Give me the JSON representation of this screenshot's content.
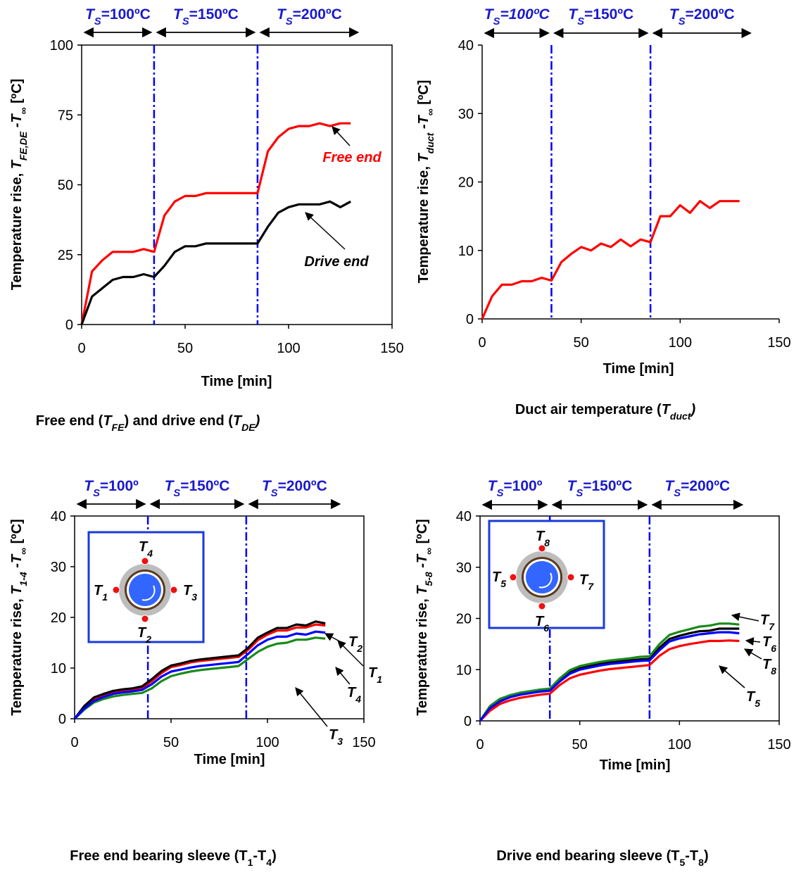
{
  "chart_data": [
    {
      "type": "line",
      "x": [
        0,
        5,
        10,
        15,
        20,
        25,
        30,
        35,
        40,
        45,
        50,
        55,
        60,
        65,
        70,
        75,
        80,
        85,
        90,
        95,
        100,
        105,
        110,
        115,
        120,
        125,
        130
      ],
      "xlim": [
        0,
        150
      ],
      "xticks": [
        0,
        50,
        100,
        150
      ],
      "ylim": [
        0,
        100
      ],
      "yticks": [
        0,
        25,
        50,
        75,
        100
      ],
      "frame": true,
      "phase_lines": [
        35,
        85
      ],
      "phases": [
        [
          {
            "text": "T",
            "italic": true
          },
          {
            "text": "S",
            "italic": true,
            "sub": true
          },
          {
            "text": "=100ºC"
          }
        ],
        [
          {
            "text": "T",
            "italic": true
          },
          {
            "text": "S",
            "italic": true,
            "sub": true
          },
          {
            "text": "=150ºC"
          }
        ],
        [
          {
            "text": "T",
            "italic": true
          },
          {
            "text": "S",
            "italic": true,
            "sub": true
          },
          {
            "text": "=200ºC"
          }
        ]
      ],
      "ylabel": [
        {
          "text": "Temperature rise, "
        },
        {
          "text": "T",
          "italic": true
        },
        {
          "text": "FE,DE",
          "italic": true,
          "sub": true
        },
        {
          "text": " -T",
          "italic": true
        },
        {
          "text": "∞",
          "italic": true,
          "sub": true
        },
        {
          "text": " [ºC]"
        }
      ],
      "xlabel": "Time [min]",
      "caption": [
        {
          "text": "Free end ("
        },
        {
          "text": "T",
          "italic": true
        },
        {
          "text": "FE",
          "italic": true,
          "sub": true
        },
        {
          "text": ") and drive end ("
        },
        {
          "text": "T",
          "italic": true
        },
        {
          "text": "DE",
          "italic": true,
          "sub": true
        },
        {
          "text": ")",
          "italic": true
        }
      ],
      "series": [
        {
          "name": "Free end",
          "color": "#ff0000",
          "values": [
            0,
            19,
            23,
            26,
            26,
            26,
            27,
            26,
            39,
            44,
            46,
            46,
            47,
            47,
            47,
            47,
            47,
            47,
            62,
            67,
            70,
            71,
            71,
            72,
            71,
            72,
            72
          ]
        },
        {
          "name": "Drive end",
          "color": "#000000",
          "values": [
            0,
            10,
            13,
            16,
            17,
            17,
            18,
            17,
            21,
            26,
            28,
            28,
            29,
            29,
            29,
            29,
            29,
            29,
            35,
            40,
            42,
            43,
            43,
            43,
            44,
            42,
            44
          ]
        }
      ]
    },
    {
      "type": "line",
      "x": [
        0,
        5,
        10,
        15,
        20,
        25,
        30,
        35,
        40,
        45,
        50,
        55,
        60,
        65,
        70,
        75,
        80,
        85,
        90,
        95,
        100,
        105,
        110,
        115,
        120,
        125,
        130
      ],
      "xlim": [
        0,
        150
      ],
      "xticks": [
        0,
        50,
        100,
        150
      ],
      "ylim": [
        0,
        40
      ],
      "yticks": [
        0,
        10,
        20,
        30,
        40
      ],
      "frame": false,
      "phase_lines": [
        35,
        85
      ],
      "phases": [
        [
          {
            "text": "T",
            "italic": true
          },
          {
            "text": "S",
            "italic": true,
            "sub": true
          },
          {
            "text": "=100ºC",
            "italic": true
          }
        ],
        [
          {
            "text": "T",
            "italic": true
          },
          {
            "text": "S",
            "italic": true,
            "sub": true
          },
          {
            "text": "=150ºC"
          }
        ],
        [
          {
            "text": "T",
            "italic": true
          },
          {
            "text": "S",
            "italic": true,
            "sub": true
          },
          {
            "text": "=200ºC"
          }
        ]
      ],
      "ylabel": [
        {
          "text": "Temperature rise, "
        },
        {
          "text": "T",
          "italic": true
        },
        {
          "text": "duct",
          "italic": true,
          "sub": true
        },
        {
          "text": " -T",
          "italic": true
        },
        {
          "text": "∞",
          "italic": true,
          "sub": true
        },
        {
          "text": " [ºC]"
        }
      ],
      "xlabel": "Time [min]",
      "caption": [
        {
          "text": "Duct air temperature ("
        },
        {
          "text": "T",
          "italic": true
        },
        {
          "text": "duct",
          "italic": true,
          "sub": true
        },
        {
          "text": ")",
          "italic": true
        }
      ],
      "series": [
        {
          "color": "#ff0000",
          "values": [
            0,
            3.3,
            5,
            5,
            5.5,
            5.5,
            6,
            5.6,
            8.3,
            9.5,
            10.5,
            10,
            11,
            10.5,
            11.6,
            10.6,
            11.6,
            11.2,
            15,
            15,
            16.6,
            15.5,
            17.2,
            16.2,
            17.2,
            17.2,
            17.2
          ]
        }
      ]
    },
    {
      "type": "line",
      "x": [
        0,
        5,
        10,
        15,
        20,
        25,
        30,
        35,
        40,
        45,
        50,
        55,
        60,
        65,
        70,
        75,
        80,
        85,
        90,
        95,
        100,
        105,
        110,
        115,
        120,
        125,
        130
      ],
      "xlim": [
        0,
        150
      ],
      "xticks": [
        0,
        50,
        100,
        150
      ],
      "ylim": [
        0,
        40
      ],
      "yticks": [
        0,
        10,
        20,
        30,
        40
      ],
      "frame": true,
      "phase_lines": [
        38,
        89
      ],
      "phases": [
        [
          {
            "text": "T",
            "italic": true
          },
          {
            "text": "S",
            "italic": true,
            "sub": true
          },
          {
            "text": "=100º"
          }
        ],
        [
          {
            "text": "T",
            "italic": true
          },
          {
            "text": "S",
            "italic": true,
            "sub": true
          },
          {
            "text": "=150ºC"
          }
        ],
        [
          {
            "text": "T",
            "italic": true
          },
          {
            "text": "S",
            "italic": true,
            "sub": true
          },
          {
            "text": "=200ºC"
          }
        ]
      ],
      "ylabel": [
        {
          "text": "Temperature rise, "
        },
        {
          "text": "T",
          "italic": true
        },
        {
          "text": "1-4",
          "italic": true,
          "sub": true
        },
        {
          "text": " -T",
          "italic": true
        },
        {
          "text": "∞",
          "italic": true,
          "sub": true
        },
        {
          "text": " [ºC]"
        }
      ],
      "xlabel": "Time [min]",
      "caption": [
        {
          "text": "Free end bearing sleeve (T"
        },
        {
          "text": "1",
          "sub": true
        },
        {
          "text": "-T"
        },
        {
          "text": "4",
          "sub": true
        },
        {
          "text": ")"
        }
      ],
      "series": [
        {
          "name": [
            {
              "text": "T",
              "italic": true
            },
            {
              "text": "1",
              "italic": true,
              "sub": true
            }
          ],
          "color": "#ff0000",
          "values": [
            0,
            2.3,
            3.9,
            4.6,
            5.2,
            5.5,
            5.8,
            6.1,
            7.4,
            9.0,
            10.2,
            10.6,
            11.1,
            11.4,
            11.6,
            11.8,
            12.0,
            12.2,
            13.6,
            15.5,
            16.6,
            17.4,
            17.4,
            18.0,
            18.0,
            18.6,
            18.4
          ]
        },
        {
          "name": [
            {
              "text": "T",
              "italic": true
            },
            {
              "text": "2",
              "italic": true,
              "sub": true
            }
          ],
          "color": "#000000",
          "values": [
            0,
            2.5,
            4.2,
            4.9,
            5.5,
            5.8,
            6.0,
            6.4,
            7.8,
            9.4,
            10.5,
            10.9,
            11.4,
            11.7,
            11.9,
            12.1,
            12.3,
            12.5,
            14.0,
            16.0,
            17.0,
            17.9,
            17.9,
            18.6,
            18.4,
            19.2,
            18.8
          ]
        },
        {
          "name": [
            {
              "text": "T",
              "italic": true
            },
            {
              "text": "3",
              "italic": true,
              "sub": true
            }
          ],
          "color": "#1a8a1a",
          "values": [
            0,
            1.8,
            3.2,
            3.9,
            4.4,
            4.7,
            4.9,
            5.1,
            6.0,
            7.4,
            8.4,
            8.9,
            9.3,
            9.6,
            9.8,
            10.0,
            10.2,
            10.4,
            11.8,
            13.2,
            14.2,
            14.8,
            15.0,
            15.6,
            15.6,
            16.0,
            15.8
          ]
        },
        {
          "name": [
            {
              "text": "T",
              "italic": true
            },
            {
              "text": "4",
              "italic": true,
              "sub": true
            }
          ],
          "color": "#0000ff",
          "values": [
            0,
            2.0,
            3.5,
            4.3,
            4.9,
            5.2,
            5.4,
            5.7,
            6.8,
            8.3,
            9.3,
            9.7,
            10.1,
            10.4,
            10.6,
            10.8,
            11.0,
            11.2,
            12.8,
            14.5,
            15.6,
            16.2,
            16.2,
            16.8,
            16.6,
            17.2,
            17.0
          ]
        }
      ]
    },
    {
      "type": "line",
      "x": [
        0,
        5,
        10,
        15,
        20,
        25,
        30,
        35,
        40,
        45,
        50,
        55,
        60,
        65,
        70,
        75,
        80,
        85,
        90,
        95,
        100,
        105,
        110,
        115,
        120,
        125,
        130
      ],
      "xlim": [
        0,
        150
      ],
      "xticks": [
        0,
        50,
        100,
        150
      ],
      "ylim": [
        0,
        40
      ],
      "yticks": [
        0,
        10,
        20,
        30,
        40
      ],
      "frame": true,
      "phase_lines": [
        35,
        85
      ],
      "phases": [
        [
          {
            "text": "T",
            "italic": true
          },
          {
            "text": "S",
            "italic": true,
            "sub": true
          },
          {
            "text": "=100º"
          }
        ],
        [
          {
            "text": "T",
            "italic": true
          },
          {
            "text": "S",
            "italic": true,
            "sub": true
          },
          {
            "text": "=150ºC"
          }
        ],
        [
          {
            "text": "T",
            "italic": true
          },
          {
            "text": "S",
            "italic": true,
            "sub": true
          },
          {
            "text": "=200ºC"
          }
        ]
      ],
      "ylabel": [
        {
          "text": "Temperature rise, "
        },
        {
          "text": "T",
          "italic": true
        },
        {
          "text": "5-8",
          "italic": true,
          "sub": true
        },
        {
          "text": " -T",
          "italic": true
        },
        {
          "text": "∞",
          "italic": true,
          "sub": true
        },
        {
          "text": " [ºC]"
        }
      ],
      "xlabel": "Time [min]",
      "caption": [
        {
          "text": "Drive end bearing sleeve (T"
        },
        {
          "text": "5",
          "sub": true
        },
        {
          "text": "-T"
        },
        {
          "text": "8",
          "sub": true
        },
        {
          "text": ")"
        }
      ],
      "series": [
        {
          "name": [
            {
              "text": "T",
              "italic": true
            },
            {
              "text": "5",
              "italic": true,
              "sub": true
            }
          ],
          "color": "#ff0000",
          "values": [
            0,
            2.0,
            3.3,
            4.0,
            4.5,
            4.8,
            5.1,
            5.3,
            7.0,
            8.3,
            9.0,
            9.4,
            9.8,
            10.1,
            10.3,
            10.5,
            10.7,
            10.9,
            12.7,
            14.0,
            14.6,
            15.0,
            15.3,
            15.6,
            15.6,
            15.7,
            15.6
          ]
        },
        {
          "name": [
            {
              "text": "T",
              "italic": true
            },
            {
              "text": "6",
              "italic": true,
              "sub": true
            }
          ],
          "color": "#000000",
          "values": [
            0,
            2.7,
            4.0,
            4.8,
            5.3,
            5.6,
            5.9,
            6.1,
            8.0,
            9.5,
            10.3,
            10.7,
            11.1,
            11.4,
            11.6,
            11.8,
            12.0,
            12.1,
            14.3,
            16.0,
            16.6,
            17.1,
            17.5,
            17.6,
            18.0,
            18.0,
            18.0
          ]
        },
        {
          "name": [
            {
              "text": "T",
              "italic": true
            },
            {
              "text": "7",
              "italic": true,
              "sub": true
            }
          ],
          "color": "#1a8a1a",
          "values": [
            0,
            2.9,
            4.3,
            5.0,
            5.5,
            5.8,
            6.1,
            6.3,
            8.3,
            9.9,
            10.7,
            11.1,
            11.5,
            11.8,
            12.0,
            12.2,
            12.5,
            12.6,
            15.0,
            16.8,
            17.4,
            17.9,
            18.4,
            18.6,
            19.0,
            19.0,
            18.8
          ]
        },
        {
          "name": [
            {
              "text": "T",
              "italic": true
            },
            {
              "text": "8",
              "italic": true,
              "sub": true
            }
          ],
          "color": "#0000ff",
          "values": [
            0,
            2.5,
            3.8,
            4.6,
            5.1,
            5.4,
            5.7,
            5.9,
            7.7,
            9.2,
            10.0,
            10.4,
            10.8,
            11.1,
            11.3,
            11.5,
            11.7,
            11.8,
            13.8,
            15.5,
            16.1,
            16.5,
            16.9,
            17.1,
            17.3,
            17.3,
            17.1
          ]
        }
      ]
    }
  ]
}
